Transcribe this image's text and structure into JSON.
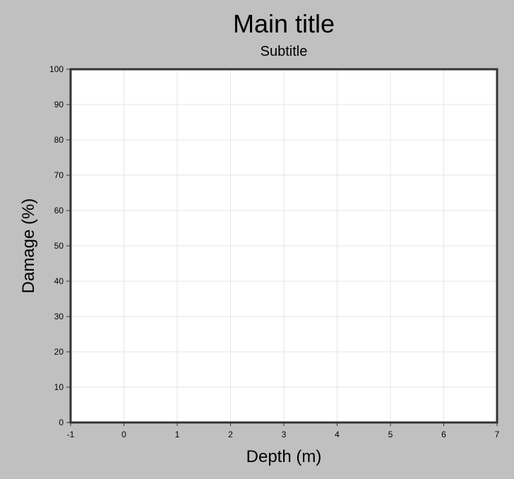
{
  "chart_data": {
    "type": "line",
    "title": "Main title",
    "subtitle": "Subtitle",
    "xlabel": "Depth (m)",
    "ylabel": "Damage (%)",
    "xlim": [
      -1,
      7
    ],
    "ylim": [
      0,
      100
    ],
    "xticks": [
      -1,
      0,
      1,
      2,
      3,
      4,
      5,
      6,
      7
    ],
    "yticks": [
      0,
      10,
      20,
      30,
      40,
      50,
      60,
      70,
      80,
      90,
      100
    ],
    "grid": true,
    "series": []
  },
  "colors": {
    "background": "#c0c0c0",
    "plot_background": "#ffffff",
    "frame": "#333333",
    "grid": "#e6e6e6"
  }
}
